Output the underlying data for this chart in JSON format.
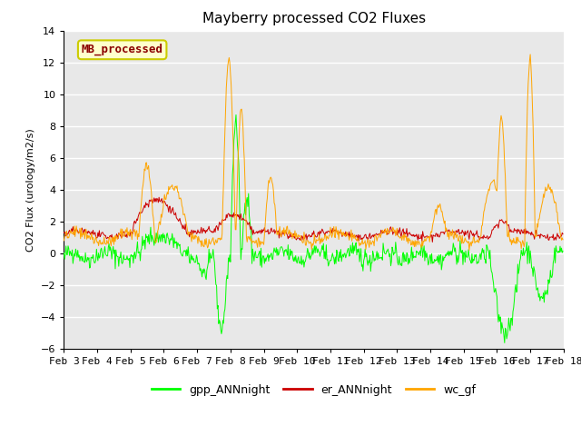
{
  "title": "Mayberry processed CO2 Fluxes",
  "ylabel": "CO2 Flux (urology/m2/s)",
  "ylim": [
    -6,
    14
  ],
  "yticks": [
    -6,
    -4,
    -2,
    0,
    2,
    4,
    6,
    8,
    10,
    12,
    14
  ],
  "xtick_labels": [
    "Feb 3",
    "Feb 4",
    "Feb 5",
    "Feb 6",
    "Feb 7",
    "Feb 8",
    "Feb 9",
    "Feb 10",
    "Feb 11",
    "Feb 12",
    "Feb 13",
    "Feb 14",
    "Feb 15",
    "Feb 16",
    "Feb 17",
    "Feb 18"
  ],
  "annotation_text": "MB_processed",
  "annotation_color": "#8B0000",
  "annotation_bg": "#FFFFCC",
  "annotation_border": "#CCCC00",
  "line_green": "#00FF00",
  "line_red": "#CC0000",
  "line_orange": "#FFA500",
  "legend_labels": [
    "gpp_ANNnight",
    "er_ANNnight",
    "wc_gf"
  ],
  "bg_color": "#E8E8E8",
  "grid_color": "#FFFFFF",
  "title_fontsize": 11,
  "label_fontsize": 8,
  "tick_fontsize": 8
}
